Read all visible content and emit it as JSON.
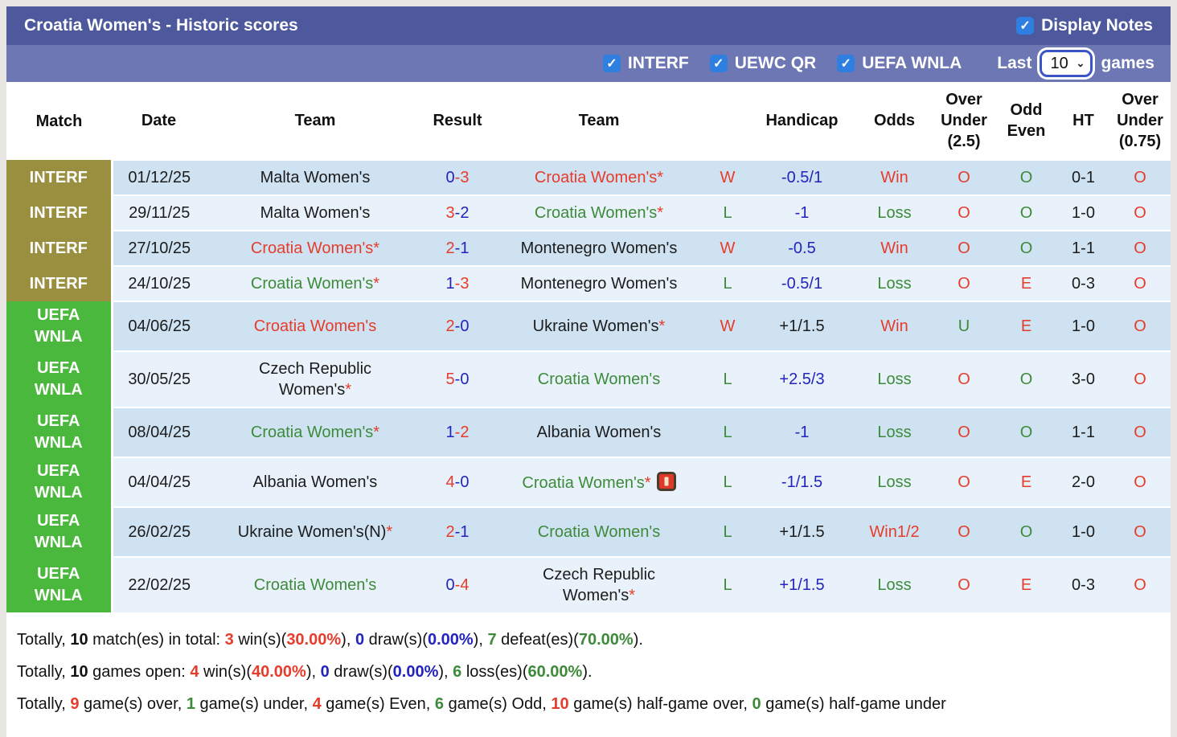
{
  "title_bar": {
    "title": "Croatia Women's - Historic scores",
    "display_notes_label": "Display Notes",
    "display_notes_checked": true
  },
  "filter_bar": {
    "competitions": [
      {
        "label": "INTERF",
        "checked": true
      },
      {
        "label": "UEWC QR",
        "checked": true
      },
      {
        "label": "UEFA WNLA",
        "checked": true
      }
    ],
    "last_label": "Last",
    "games_count": "10",
    "games_label": "games"
  },
  "colors": {
    "title_bar_bg": "#4d599c",
    "filter_bar_bg": "#6d77b4",
    "checkbox_blue": "#2e7fe0",
    "select_border_blue": "#3a55c8",
    "interf_bg": "#9a8f3f",
    "uefa_wnla_bg": "#4ab83c",
    "row_dark": "#cfe2f1",
    "row_light": "#e9f2fa",
    "win_red": "#e63c2b",
    "score_blue": "#2323bd",
    "loss_green": "#3d8b3a"
  },
  "table": {
    "columns": [
      "Match",
      "Date",
      "Team",
      "Result",
      "Team",
      "",
      "Handicap",
      "Odds",
      "Over Under (2.5)",
      "Odd Even",
      "HT",
      "Over Under (0.75)"
    ],
    "rows": [
      {
        "match": "INTERF",
        "match_type": "interf",
        "date": "01/12/25",
        "team1": {
          "name": "Malta Women's",
          "color": "black",
          "star": false
        },
        "result": {
          "home": "0",
          "home_color": "blue",
          "away": "3",
          "away_color": "red"
        },
        "team2": {
          "name": "Croatia Women's",
          "color": "red",
          "star": true,
          "red_card": false
        },
        "wl": {
          "text": "W",
          "color": "red"
        },
        "handicap": {
          "text": "-0.5/1",
          "color": "blue"
        },
        "odds": {
          "text": "Win",
          "color": "red"
        },
        "ou25": {
          "text": "O",
          "color": "red"
        },
        "oddeven": {
          "text": "O",
          "color": "green"
        },
        "ht": "0-1",
        "ou075": {
          "text": "O",
          "color": "red"
        }
      },
      {
        "match": "INTERF",
        "match_type": "interf",
        "date": "29/11/25",
        "team1": {
          "name": "Malta Women's",
          "color": "black",
          "star": false
        },
        "result": {
          "home": "3",
          "home_color": "red",
          "away": "2",
          "away_color": "blue"
        },
        "team2": {
          "name": "Croatia Women's",
          "color": "green",
          "star": true,
          "red_card": false
        },
        "wl": {
          "text": "L",
          "color": "green"
        },
        "handicap": {
          "text": "-1",
          "color": "blue"
        },
        "odds": {
          "text": "Loss",
          "color": "green"
        },
        "ou25": {
          "text": "O",
          "color": "red"
        },
        "oddeven": {
          "text": "O",
          "color": "green"
        },
        "ht": "1-0",
        "ou075": {
          "text": "O",
          "color": "red"
        }
      },
      {
        "match": "INTERF",
        "match_type": "interf",
        "date": "27/10/25",
        "team1": {
          "name": "Croatia Women's",
          "color": "red",
          "star": true
        },
        "result": {
          "home": "2",
          "home_color": "red",
          "away": "1",
          "away_color": "blue"
        },
        "team2": {
          "name": "Montenegro Women's",
          "color": "black",
          "star": false,
          "red_card": false
        },
        "wl": {
          "text": "W",
          "color": "red"
        },
        "handicap": {
          "text": "-0.5",
          "color": "blue"
        },
        "odds": {
          "text": "Win",
          "color": "red"
        },
        "ou25": {
          "text": "O",
          "color": "red"
        },
        "oddeven": {
          "text": "O",
          "color": "green"
        },
        "ht": "1-1",
        "ou075": {
          "text": "O",
          "color": "red"
        }
      },
      {
        "match": "INTERF",
        "match_type": "interf",
        "date": "24/10/25",
        "team1": {
          "name": "Croatia Women's",
          "color": "green",
          "star": true
        },
        "result": {
          "home": "1",
          "home_color": "blue",
          "away": "3",
          "away_color": "red"
        },
        "team2": {
          "name": "Montenegro Women's",
          "color": "black",
          "star": false,
          "red_card": false
        },
        "wl": {
          "text": "L",
          "color": "green"
        },
        "handicap": {
          "text": "-0.5/1",
          "color": "blue"
        },
        "odds": {
          "text": "Loss",
          "color": "green"
        },
        "ou25": {
          "text": "O",
          "color": "red"
        },
        "oddeven": {
          "text": "E",
          "color": "red"
        },
        "ht": "0-3",
        "ou075": {
          "text": "O",
          "color": "red"
        }
      },
      {
        "match": "UEFA WNLA",
        "match_type": "uefa",
        "date": "04/06/25",
        "team1": {
          "name": "Croatia Women's",
          "color": "red",
          "star": false
        },
        "result": {
          "home": "2",
          "home_color": "red",
          "away": "0",
          "away_color": "blue"
        },
        "team2": {
          "name": "Ukraine Women's",
          "color": "black",
          "star": true,
          "red_card": false
        },
        "wl": {
          "text": "W",
          "color": "red"
        },
        "handicap": {
          "text": "+1/1.5",
          "color": "black"
        },
        "odds": {
          "text": "Win",
          "color": "red"
        },
        "ou25": {
          "text": "U",
          "color": "green"
        },
        "oddeven": {
          "text": "E",
          "color": "red"
        },
        "ht": "1-0",
        "ou075": {
          "text": "O",
          "color": "red"
        }
      },
      {
        "match": "UEFA WNLA",
        "match_type": "uefa",
        "date": "30/05/25",
        "team1": {
          "name": "Czech Republic Women's",
          "color": "black",
          "star": true
        },
        "result": {
          "home": "5",
          "home_color": "red",
          "away": "0",
          "away_color": "blue"
        },
        "team2": {
          "name": "Croatia Women's",
          "color": "green",
          "star": false,
          "red_card": false
        },
        "wl": {
          "text": "L",
          "color": "green"
        },
        "handicap": {
          "text": "+2.5/3",
          "color": "blue"
        },
        "odds": {
          "text": "Loss",
          "color": "green"
        },
        "ou25": {
          "text": "O",
          "color": "red"
        },
        "oddeven": {
          "text": "O",
          "color": "green"
        },
        "ht": "3-0",
        "ou075": {
          "text": "O",
          "color": "red"
        }
      },
      {
        "match": "UEFA WNLA",
        "match_type": "uefa",
        "date": "08/04/25",
        "team1": {
          "name": "Croatia Women's",
          "color": "green",
          "star": true
        },
        "result": {
          "home": "1",
          "home_color": "blue",
          "away": "2",
          "away_color": "red"
        },
        "team2": {
          "name": "Albania Women's",
          "color": "black",
          "star": false,
          "red_card": false
        },
        "wl": {
          "text": "L",
          "color": "green"
        },
        "handicap": {
          "text": "-1",
          "color": "blue"
        },
        "odds": {
          "text": "Loss",
          "color": "green"
        },
        "ou25": {
          "text": "O",
          "color": "red"
        },
        "oddeven": {
          "text": "O",
          "color": "green"
        },
        "ht": "1-1",
        "ou075": {
          "text": "O",
          "color": "red"
        }
      },
      {
        "match": "UEFA WNLA",
        "match_type": "uefa",
        "date": "04/04/25",
        "team1": {
          "name": "Albania Women's",
          "color": "black",
          "star": false
        },
        "result": {
          "home": "4",
          "home_color": "red",
          "away": "0",
          "away_color": "blue"
        },
        "team2": {
          "name": "Croatia Women's",
          "color": "green",
          "star": true,
          "red_card": true
        },
        "wl": {
          "text": "L",
          "color": "green"
        },
        "handicap": {
          "text": "-1/1.5",
          "color": "blue"
        },
        "odds": {
          "text": "Loss",
          "color": "green"
        },
        "ou25": {
          "text": "O",
          "color": "red"
        },
        "oddeven": {
          "text": "E",
          "color": "red"
        },
        "ht": "2-0",
        "ou075": {
          "text": "O",
          "color": "red"
        }
      },
      {
        "match": "UEFA WNLA",
        "match_type": "uefa",
        "date": "26/02/25",
        "team1": {
          "name": "Ukraine Women's(N)",
          "color": "black",
          "star": true
        },
        "result": {
          "home": "2",
          "home_color": "red",
          "away": "1",
          "away_color": "blue"
        },
        "team2": {
          "name": "Croatia Women's",
          "color": "green",
          "star": false,
          "red_card": false
        },
        "wl": {
          "text": "L",
          "color": "green"
        },
        "handicap": {
          "text": "+1/1.5",
          "color": "black"
        },
        "odds": {
          "text": "Win1/2",
          "color": "red"
        },
        "ou25": {
          "text": "O",
          "color": "red"
        },
        "oddeven": {
          "text": "O",
          "color": "green"
        },
        "ht": "1-0",
        "ou075": {
          "text": "O",
          "color": "red"
        }
      },
      {
        "match": "UEFA WNLA",
        "match_type": "uefa",
        "date": "22/02/25",
        "team1": {
          "name": "Croatia Women's",
          "color": "green",
          "star": false
        },
        "result": {
          "home": "0",
          "home_color": "blue",
          "away": "4",
          "away_color": "red"
        },
        "team2": {
          "name": "Czech Republic Women's",
          "color": "black",
          "star": true,
          "red_card": false
        },
        "wl": {
          "text": "L",
          "color": "green"
        },
        "handicap": {
          "text": "+1/1.5",
          "color": "blue"
        },
        "odds": {
          "text": "Loss",
          "color": "green"
        },
        "ou25": {
          "text": "O",
          "color": "red"
        },
        "oddeven": {
          "text": "E",
          "color": "red"
        },
        "ht": "0-3",
        "ou075": {
          "text": "O",
          "color": "red"
        }
      }
    ]
  },
  "summary": {
    "lines": [
      [
        {
          "t": "Totally, "
        },
        {
          "t": "10",
          "b": true
        },
        {
          "t": " match(es) in total: "
        },
        {
          "t": "3",
          "c": "red",
          "b": true
        },
        {
          "t": " win(s)("
        },
        {
          "t": "30.00%",
          "c": "red",
          "b": true
        },
        {
          "t": "), "
        },
        {
          "t": "0",
          "c": "blue",
          "b": true
        },
        {
          "t": " draw(s)("
        },
        {
          "t": "0.00%",
          "c": "blue",
          "b": true
        },
        {
          "t": "), "
        },
        {
          "t": "7",
          "c": "green",
          "b": true
        },
        {
          "t": " defeat(es)("
        },
        {
          "t": "70.00%",
          "c": "green",
          "b": true
        },
        {
          "t": ")."
        }
      ],
      [
        {
          "t": "Totally, "
        },
        {
          "t": "10",
          "b": true
        },
        {
          "t": " games open: "
        },
        {
          "t": "4",
          "c": "red",
          "b": true
        },
        {
          "t": " win(s)("
        },
        {
          "t": "40.00%",
          "c": "red",
          "b": true
        },
        {
          "t": "), "
        },
        {
          "t": "0",
          "c": "blue",
          "b": true
        },
        {
          "t": " draw(s)("
        },
        {
          "t": "0.00%",
          "c": "blue",
          "b": true
        },
        {
          "t": "), "
        },
        {
          "t": "6",
          "c": "green",
          "b": true
        },
        {
          "t": " loss(es)("
        },
        {
          "t": "60.00%",
          "c": "green",
          "b": true
        },
        {
          "t": ")."
        }
      ],
      [
        {
          "t": "Totally, "
        },
        {
          "t": "9",
          "c": "red",
          "b": true
        },
        {
          "t": " game(s) over, "
        },
        {
          "t": "1",
          "c": "green",
          "b": true
        },
        {
          "t": " game(s) under, "
        },
        {
          "t": "4",
          "c": "red",
          "b": true
        },
        {
          "t": " game(s) Even, "
        },
        {
          "t": "6",
          "c": "green",
          "b": true
        },
        {
          "t": " game(s) Odd, "
        },
        {
          "t": "10",
          "c": "red",
          "b": true
        },
        {
          "t": " game(s) half-game over, "
        },
        {
          "t": "0",
          "c": "green",
          "b": true
        },
        {
          "t": " game(s) half-game under"
        }
      ]
    ]
  }
}
